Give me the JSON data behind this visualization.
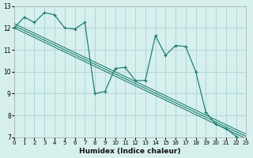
{
  "xlabel": "Humidex (Indice chaleur)",
  "bg_color": "#d6f0ee",
  "grid_color": "#b0d8d4",
  "line_color": "#1a7a6e",
  "xlim": [
    0,
    23
  ],
  "ylim": [
    7,
    13
  ],
  "xticks": [
    0,
    1,
    2,
    3,
    4,
    5,
    6,
    7,
    8,
    9,
    10,
    11,
    12,
    13,
    14,
    15,
    16,
    17,
    18,
    19,
    20,
    21,
    22,
    23
  ],
  "yticks": [
    7,
    8,
    9,
    10,
    11,
    12,
    13
  ],
  "zigzag_x": [
    0,
    1,
    2,
    3,
    4,
    5,
    6,
    7,
    8,
    9,
    10,
    11,
    12,
    13,
    14,
    15,
    16,
    17,
    18,
    19,
    20,
    21,
    22,
    23
  ],
  "zigzag_y": [
    12.0,
    12.5,
    12.25,
    12.7,
    12.6,
    12.0,
    11.95,
    12.25,
    9.0,
    9.1,
    10.15,
    10.2,
    9.6,
    9.6,
    11.65,
    10.75,
    11.2,
    11.15,
    10.0,
    8.15,
    7.6,
    7.4,
    7.05,
    6.8
  ],
  "line1": [
    12.0,
    11.78,
    11.56,
    11.34,
    11.12,
    10.9,
    10.68,
    10.46,
    10.24,
    10.02,
    9.8,
    9.58,
    9.36,
    9.14,
    8.92,
    8.7,
    8.48,
    8.26,
    8.04,
    7.82,
    7.6,
    7.38,
    7.16,
    6.94
  ],
  "line2": [
    12.1,
    11.88,
    11.66,
    11.44,
    11.22,
    11.0,
    10.78,
    10.56,
    10.34,
    10.12,
    9.9,
    9.68,
    9.46,
    9.24,
    9.02,
    8.8,
    8.58,
    8.36,
    8.14,
    7.92,
    7.7,
    7.48,
    7.26,
    7.04
  ],
  "line3": [
    12.2,
    11.98,
    11.76,
    11.54,
    11.32,
    11.1,
    10.88,
    10.66,
    10.44,
    10.22,
    10.0,
    9.78,
    9.56,
    9.34,
    9.12,
    8.9,
    8.68,
    8.46,
    8.24,
    8.02,
    7.8,
    7.58,
    7.36,
    7.14
  ]
}
